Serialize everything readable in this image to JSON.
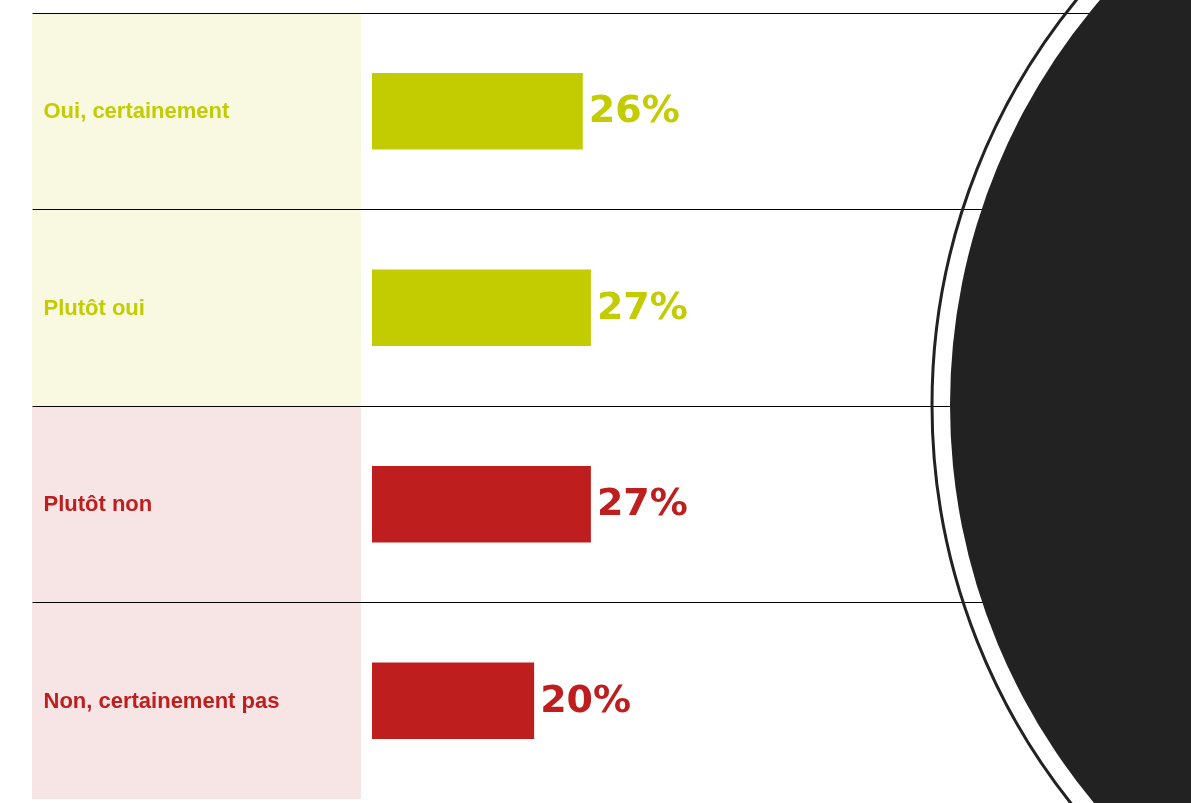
{
  "chart_data": {
    "type": "bar",
    "orientation": "horizontal",
    "categories": [
      "Oui, certainement",
      "Plutôt oui",
      "Plutôt non",
      "Non, certainement pas"
    ],
    "values": [
      26,
      27,
      27,
      20
    ],
    "colors": [
      "#c2cc00",
      "#c2cc00",
      "#be1e1e",
      "#be1e1e"
    ],
    "value_labels": [
      "26%",
      "27%",
      "27%",
      "20%"
    ],
    "grid": true
  }
}
